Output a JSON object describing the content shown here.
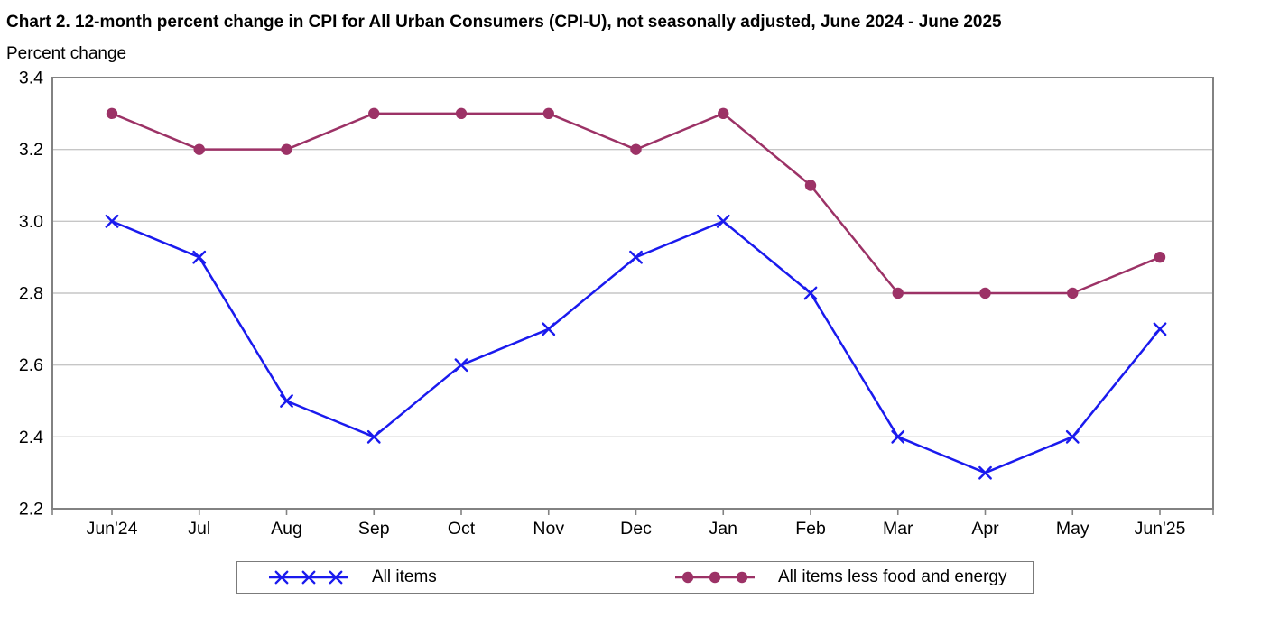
{
  "chart_data": {
    "type": "line",
    "title": "Chart 2. 12-month percent change in CPI for All Urban Consumers (CPI-U), not seasonally adjusted, June 2024 - June 2025",
    "ylabel": "Percent change",
    "xlabel": "",
    "categories": [
      "Jun'24",
      "Jul",
      "Aug",
      "Sep",
      "Oct",
      "Nov",
      "Dec",
      "Jan",
      "Feb",
      "Mar",
      "Apr",
      "May",
      "Jun'25"
    ],
    "series": [
      {
        "name": "All items",
        "marker": "x",
        "color": "#1a1aee",
        "values": [
          3.0,
          2.9,
          2.5,
          2.4,
          2.6,
          2.7,
          2.9,
          3.0,
          2.8,
          2.4,
          2.3,
          2.4,
          2.7
        ]
      },
      {
        "name": "All items less food and energy",
        "marker": "circle",
        "color": "#9c3266",
        "values": [
          3.3,
          3.2,
          3.2,
          3.3,
          3.3,
          3.3,
          3.2,
          3.3,
          3.1,
          2.8,
          2.8,
          2.8,
          2.9
        ]
      }
    ],
    "ylim": [
      2.2,
      3.4
    ],
    "yticks": [
      2.2,
      2.4,
      2.6,
      2.8,
      3.0,
      3.2,
      3.4
    ],
    "ytick_decimals": 1,
    "grid": "horizontal",
    "legend_position": "bottom",
    "colors": {
      "gridline": "#c6c6c6",
      "axis_border": "#828282",
      "text": "#000000",
      "background": "#ffffff"
    }
  }
}
